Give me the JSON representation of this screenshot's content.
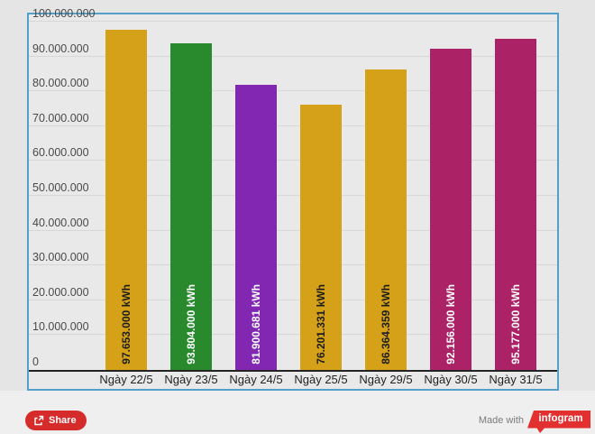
{
  "chart_data": {
    "type": "bar",
    "title": "",
    "xlabel": "",
    "ylabel": "",
    "categories": [
      "Ngày 22/5",
      "Ngày 23/5",
      "Ngày 24/5",
      "Ngày 25/5",
      "Ngày 29/5",
      "Ngày 30/5",
      "Ngày 31/5"
    ],
    "values": [
      97653000,
      93804000,
      81900681,
      76201331,
      86364359,
      92156000,
      95177000
    ],
    "value_labels": [
      "97.653.000 kWh",
      "93.804.000 kWh",
      "81.900.681 kWh",
      "76.201.331 kWh",
      "86.364.359 kWh",
      "92.156.000 kWh",
      "95.177.000 kWh"
    ],
    "bar_colors": [
      "#d4a119",
      "#288a2d",
      "#8227b2",
      "#d4a119",
      "#d4a119",
      "#ab2366",
      "#ab2366"
    ],
    "value_label_colors": [
      "#1d1d1d",
      "#ffffff",
      "#ffffff",
      "#1d1d1d",
      "#1d1d1d",
      "#ffffff",
      "#ffffff"
    ],
    "ylim": [
      0,
      100000000
    ],
    "grid": true,
    "legend": "none",
    "y_ticks": [
      {
        "value": 0,
        "label": "0"
      },
      {
        "value": 10000000,
        "label": "10.000.000"
      },
      {
        "value": 20000000,
        "label": "20.000.000"
      },
      {
        "value": 30000000,
        "label": "30.000.000"
      },
      {
        "value": 40000000,
        "label": "40.000.000"
      },
      {
        "value": 50000000,
        "label": "50.000.000"
      },
      {
        "value": 60000000,
        "label": "60.000.000"
      },
      {
        "value": 70000000,
        "label": "70.000.000"
      },
      {
        "value": 80000000,
        "label": "80.000.000"
      },
      {
        "value": 90000000,
        "label": "90.000.000"
      },
      {
        "value": 100000000,
        "label": "100.000.000"
      }
    ]
  },
  "colors": {
    "page_background": "#e5e5e5",
    "footer_background": "#efefef",
    "plot_background": "#e9e9e9",
    "frame_border": "#55a0c8",
    "axis_line": "#232323",
    "gridline": "#d7d7d7",
    "share_button_red": "#d52b2b",
    "brand_red": "#e23030"
  },
  "footer": {
    "share_label": "Share",
    "made_with_label": "Made with",
    "brand_label": "infogram"
  }
}
